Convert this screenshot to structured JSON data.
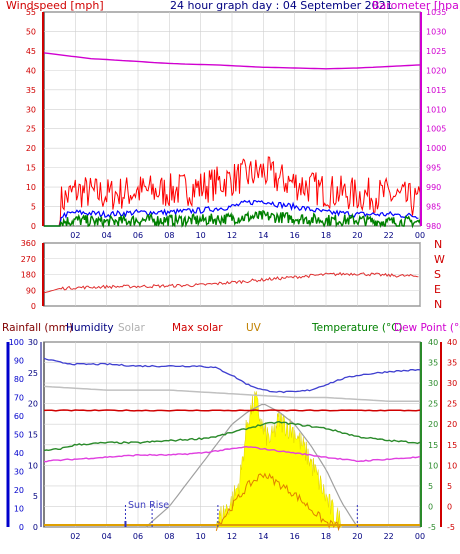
{
  "header": {
    "windspeed_label": "Windspeed [mph]",
    "title": "24 hour graph day : 04 September 2021",
    "barometer_label": "Barometer [hpa]"
  },
  "bottom_header": {
    "rainfall_label": "Rainfall (mm)",
    "humidity_label": "Humidity",
    "solar_label": "Solar",
    "maxsolar_label": "Max solar",
    "uv_label": "UV",
    "temperature_label": "Temperature (°C)",
    "dewpoint_label": "Dew Point (°C)"
  },
  "annotations": {
    "sunrise": "Sun Rise"
  },
  "colors": {
    "wind_axis": "#d00000",
    "barometer": "#d000d0",
    "gust": "#ff0000",
    "average": "#0000ff",
    "low_wind": "#008000",
    "direction": "#e03030",
    "humidity": "#4040d0",
    "solar": "#c0c0c0",
    "maxsolar": "#d00000",
    "uv": "#ffff00",
    "temperature": "#2a8a2a",
    "dewpoint": "#e040e0",
    "rainfall_axis": "#0000cc",
    "grid": "#d0d0d0"
  },
  "chart_data": [
    {
      "type": "line",
      "title": "24 hour graph day : 04 September 2021",
      "xlabel": "",
      "x_ticks": [
        "02",
        "04",
        "06",
        "08",
        "10",
        "12",
        "14",
        "16",
        "18",
        "20",
        "22",
        "00"
      ],
      "y_left_label": "Windspeed [mph]",
      "y_left_range": [
        0,
        55
      ],
      "y_left_ticks": [
        0,
        5,
        10,
        15,
        20,
        25,
        30,
        35,
        40,
        45,
        50,
        55
      ],
      "y_right_label": "Barometer [hpa]",
      "y_right_range": [
        980,
        1035
      ],
      "y_right_ticks": [
        980,
        985,
        990,
        995,
        1000,
        1005,
        1010,
        1015,
        1020,
        1025,
        1030,
        1035
      ],
      "series": [
        {
          "values_hour": [
            0,
            1,
            2,
            3,
            4,
            5,
            6,
            7,
            8,
            9,
            10,
            11,
            12,
            13,
            14,
            15,
            16,
            17,
            18,
            20,
            22,
            24
          ],
          "values": [
            1024.5,
            1024,
            1023.5,
            1023,
            1022.8,
            1022.5,
            1022.3,
            1022,
            1021.8,
            1021.6,
            1021.5,
            1021.4,
            1021.2,
            1021,
            1020.8,
            1020.7,
            1020.6,
            1020.5,
            1020.4,
            1020.6,
            1021,
            1021.4
          ]
        },
        {
          "values_hour": [
            0,
            1,
            2,
            4,
            6,
            8,
            10,
            12,
            13,
            14,
            15,
            16,
            18,
            20,
            22,
            24
          ],
          "values": [
            0,
            6,
            9,
            8,
            9,
            9,
            10,
            12,
            13,
            14,
            12,
            11,
            9,
            8,
            8,
            6
          ]
        },
        {
          "values_hour": [
            0,
            1,
            2,
            4,
            6,
            8,
            10,
            12,
            13,
            14,
            15,
            16,
            18,
            20,
            22,
            24
          ],
          "values": [
            0,
            2.5,
            3.5,
            3,
            3.5,
            3.5,
            4,
            5,
            6,
            6.5,
            5.5,
            5,
            3.5,
            3,
            3,
            2.5
          ]
        },
        {
          "values_hour": [
            0,
            1,
            2,
            4,
            6,
            8,
            10,
            12,
            14,
            16,
            18,
            20,
            22,
            24
          ],
          "values": [
            0,
            1,
            1.5,
            1,
            1.5,
            1.5,
            1.5,
            2,
            2.5,
            2,
            1.5,
            1.5,
            1,
            1
          ]
        }
      ]
    },
    {
      "type": "line",
      "title": "",
      "y_left_range": [
        0,
        360
      ],
      "y_left_ticks": [
        0,
        90,
        180,
        270,
        360
      ],
      "y_right_ticks": [
        "N",
        "W",
        "S",
        "E",
        "N"
      ],
      "series": [
        {
          "values_hour": [
            0,
            1,
            2,
            4,
            6,
            8,
            10,
            12,
            14,
            16,
            18,
            20,
            22,
            24
          ],
          "values": [
            75,
            100,
            105,
            110,
            112,
            115,
            120,
            135,
            150,
            165,
            180,
            185,
            175,
            170
          ]
        }
      ]
    },
    {
      "type": "line",
      "title": "",
      "x_ticks": [
        "02",
        "04",
        "06",
        "08",
        "10",
        "12",
        "14",
        "16",
        "18",
        "20",
        "22",
        "00"
      ],
      "axes": {
        "rainfall": {
          "label": "Rainfall (mm)",
          "range": [
            0,
            100
          ],
          "ticks": [
            0,
            10,
            20,
            30,
            40,
            50,
            60,
            70,
            80,
            90,
            100
          ]
        },
        "humidity": {
          "label": "Humidity",
          "range": [
            0,
            30
          ],
          "ticks": [
            0,
            5,
            10,
            15,
            20,
            25,
            30
          ]
        },
        "temperature": {
          "label": "Temperature (°C)",
          "range": [
            -5,
            40
          ],
          "ticks": [
            -5,
            0,
            5,
            10,
            15,
            20,
            25,
            30,
            35,
            40
          ]
        },
        "dewpoint": {
          "label": "Dew Point (°C)",
          "range": [
            -5,
            40
          ],
          "ticks": [
            -5,
            0,
            5,
            10,
            15,
            20,
            25,
            30,
            35,
            40
          ]
        }
      },
      "series": [
        {
          "values_hour": [
            0,
            1,
            2,
            4,
            6,
            8,
            10,
            11,
            12,
            13,
            14,
            15,
            16,
            17,
            18,
            19,
            20,
            22,
            24
          ],
          "values": [
            91,
            89,
            88,
            88,
            87,
            87,
            87,
            86,
            82,
            77,
            74,
            73,
            73,
            74,
            77,
            80,
            82,
            84,
            85
          ]
        },
        {
          "values_hour": [
            0,
            2,
            4,
            6,
            8,
            10,
            12,
            14,
            16,
            18,
            20,
            22,
            24
          ],
          "values": [
            76,
            75,
            74,
            74,
            74,
            73,
            72,
            71,
            70,
            70,
            69,
            68,
            68
          ]
        },
        {
          "values_hour": [
            0,
            2,
            4,
            6,
            8,
            10,
            12,
            14,
            16,
            18,
            20,
            22,
            24
          ],
          "values": [
            63,
            63,
            63,
            63,
            63,
            63,
            63,
            63,
            63,
            63,
            63,
            63,
            63
          ]
        },
        {
          "values_hour": [
            0,
            1,
            2,
            4,
            6,
            8,
            10,
            11,
            12,
            13,
            14,
            15,
            16,
            17,
            18,
            19,
            20,
            22,
            24
          ],
          "values": [
            13.5,
            14,
            15,
            15.5,
            15.5,
            16,
            16.5,
            17,
            18,
            19,
            20,
            20.5,
            20,
            19.5,
            19,
            18,
            17,
            16,
            15.5
          ]
        },
        {
          "values_hour": [
            0,
            2,
            4,
            6,
            8,
            10,
            12,
            13,
            14,
            15,
            16,
            18,
            20,
            22,
            24
          ],
          "values": [
            11,
            11.5,
            12,
            12.5,
            12.5,
            13,
            14,
            14.5,
            14,
            13.5,
            13,
            12,
            11,
            11.5,
            12
          ]
        },
        {
          "name": "Solar",
          "values_hour": [
            6.5,
            8,
            10,
            12,
            13,
            14,
            15,
            16,
            17,
            18,
            19,
            20
          ],
          "values": [
            0,
            5,
            15,
            25,
            28,
            30,
            28,
            25,
            20,
            14,
            6,
            0
          ]
        },
        {
          "name": "UV",
          "values_hour": [
            11,
            12,
            12.5,
            13,
            13.5,
            14,
            14.5,
            15,
            16,
            17,
            18,
            18.5,
            19
          ],
          "values": [
            0,
            5,
            10,
            25,
            30,
            22,
            20,
            25,
            22,
            15,
            6,
            2,
            0
          ]
        }
      ],
      "markers": [
        {
          "hour": 5.2,
          "label": "Sun Rise"
        },
        {
          "hour": 6.9
        },
        {
          "hour": 11.1
        },
        {
          "hour": 20.0
        }
      ]
    }
  ]
}
